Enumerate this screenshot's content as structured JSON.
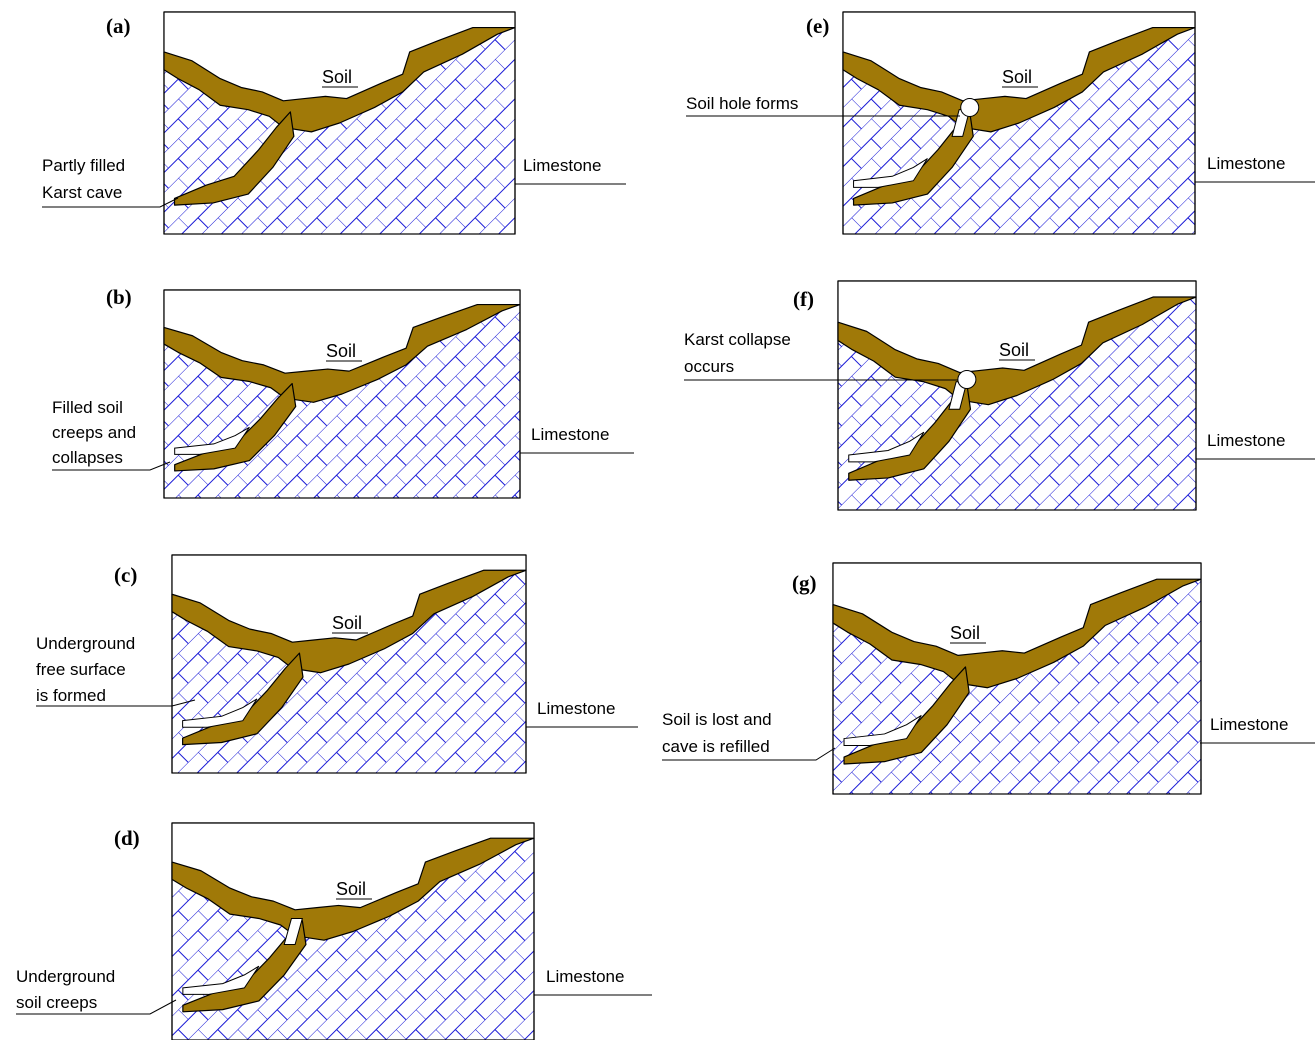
{
  "soil_color": "#a07908",
  "hatch_color": "#1a1ad6",
  "panels": {
    "a": {
      "label": "(a)",
      "soil": "Soil",
      "limestone": "Limestone",
      "annotation": [
        "Partly filled",
        "Karst cave"
      ]
    },
    "b": {
      "label": "(b)",
      "soil": "Soil",
      "limestone": "Limestone",
      "annotation": [
        "Filled soil",
        "creeps and",
        "collapses"
      ]
    },
    "c": {
      "label": "(c)",
      "soil": "Soil",
      "limestone": "Limestone",
      "annotation": [
        "Underground",
        "free surface",
        "is formed"
      ]
    },
    "d": {
      "label": "(d)",
      "soil": "Soil",
      "limestone": "Limestone",
      "annotation": [
        "Underground",
        "soil creeps"
      ]
    },
    "e": {
      "label": "(e)",
      "soil": "Soil",
      "limestone": "Limestone",
      "annotation": [
        "Soil hole forms"
      ]
    },
    "f": {
      "label": "(f)",
      "soil": "Soil",
      "limestone": "Limestone",
      "annotation": [
        "Karst collapse",
        "occurs"
      ]
    },
    "g": {
      "label": "(g)",
      "soil": "Soil",
      "limestone": "Limestone",
      "annotation": [
        "Soil is lost and",
        "cave is refilled"
      ]
    }
  }
}
